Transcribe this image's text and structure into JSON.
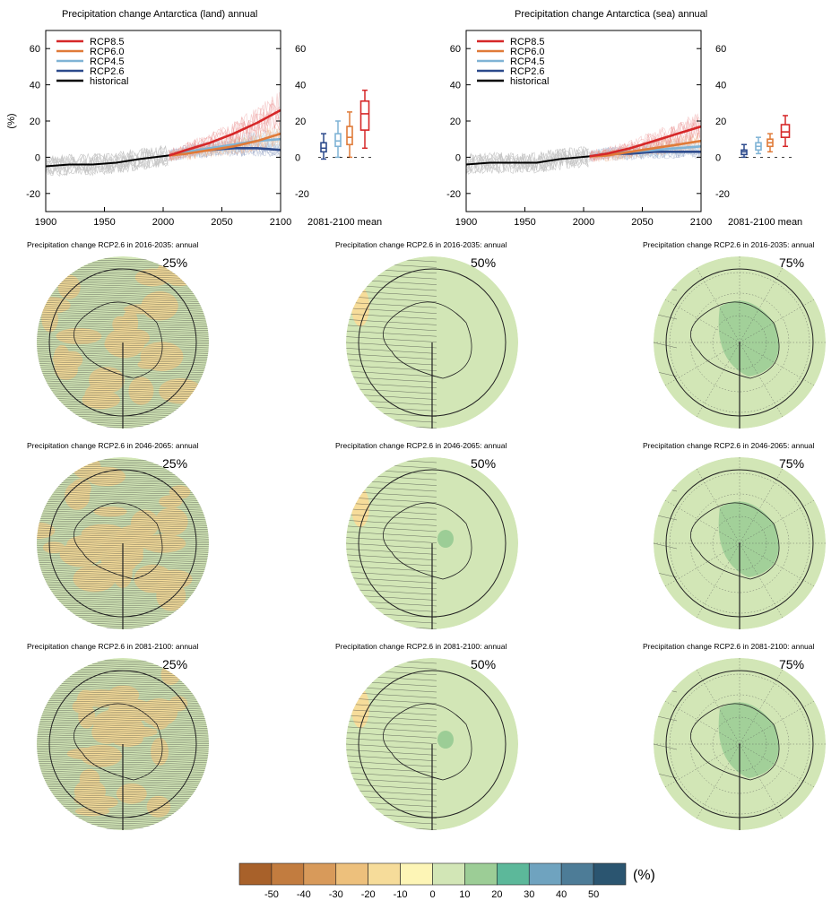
{
  "colors": {
    "rcp85": "#d62728",
    "rcp60": "#e07b39",
    "rcp45": "#7fb3d5",
    "rcp26": "#2c4a8c",
    "historical": "#000000",
    "model_spread": "#9a9a9a",
    "map_base": "#d2e6b6",
    "hatching": "#3a3a3a"
  },
  "chart_data": [
    {
      "type": "line",
      "title": "Precipitation change Antarctica (land) annual",
      "ylabel": "(%)",
      "xlim": [
        1900,
        2100
      ],
      "ylim": [
        -30,
        70
      ],
      "xticks": [
        1900,
        1950,
        2000,
        2050,
        2100
      ],
      "yticks": [
        -20,
        0,
        20,
        40,
        60
      ],
      "grid": false,
      "legend": [
        "RCP8.5",
        "RCP6.0",
        "RCP4.5",
        "RCP2.6",
        "historical"
      ],
      "legend_position": "top-left",
      "series": [
        {
          "name": "historical",
          "x": [
            1900,
            1920,
            1940,
            1960,
            1980,
            2005
          ],
          "y": [
            -5,
            -4,
            -4,
            -3,
            -1,
            1
          ]
        },
        {
          "name": "RCP2.6",
          "x": [
            2005,
            2020,
            2040,
            2060,
            2080,
            2100
          ],
          "y": [
            1,
            3,
            4,
            5,
            5,
            4
          ]
        },
        {
          "name": "RCP4.5",
          "x": [
            2005,
            2020,
            2040,
            2060,
            2080,
            2100
          ],
          "y": [
            1,
            3,
            5,
            7,
            9,
            10
          ]
        },
        {
          "name": "RCP6.0",
          "x": [
            2005,
            2020,
            2040,
            2060,
            2080,
            2100
          ],
          "y": [
            1,
            2,
            4,
            6,
            9,
            13
          ]
        },
        {
          "name": "RCP8.5",
          "x": [
            2005,
            2020,
            2040,
            2060,
            2080,
            2100
          ],
          "y": [
            1,
            4,
            8,
            13,
            19,
            26
          ]
        }
      ],
      "mean_2081_2100": {
        "label": "2081-2100 mean",
        "boxes": [
          {
            "scenario": "RCP2.6",
            "min": -1,
            "q1": 3,
            "median": 5,
            "q3": 8,
            "max": 13
          },
          {
            "scenario": "RCP4.5",
            "min": 0,
            "q1": 6,
            "median": 9,
            "q3": 13,
            "max": 20
          },
          {
            "scenario": "RCP6.0",
            "min": 0,
            "q1": 7,
            "median": 11,
            "q3": 17,
            "max": 25
          },
          {
            "scenario": "RCP8.5",
            "min": 5,
            "q1": 15,
            "median": 24,
            "q3": 31,
            "max": 37
          }
        ]
      }
    },
    {
      "type": "line",
      "title": "Precipitation change Antarctica (sea) annual",
      "ylabel": "",
      "xlim": [
        1900,
        2100
      ],
      "ylim": [
        -30,
        70
      ],
      "xticks": [
        1900,
        1950,
        2000,
        2050,
        2100
      ],
      "yticks": [
        -20,
        0,
        20,
        40,
        60
      ],
      "grid": false,
      "legend": [
        "RCP8.5",
        "RCP6.0",
        "RCP4.5",
        "RCP2.6",
        "historical"
      ],
      "legend_position": "top-left",
      "series": [
        {
          "name": "historical",
          "x": [
            1900,
            1920,
            1940,
            1960,
            1980,
            2005
          ],
          "y": [
            -4,
            -3,
            -3,
            -3,
            -1,
            0.5
          ]
        },
        {
          "name": "RCP2.6",
          "x": [
            2005,
            2020,
            2040,
            2060,
            2080,
            2100
          ],
          "y": [
            0.5,
            2,
            2,
            3,
            3,
            3
          ]
        },
        {
          "name": "RCP4.5",
          "x": [
            2005,
            2020,
            2040,
            2060,
            2080,
            2100
          ],
          "y": [
            0.5,
            2,
            3,
            4,
            5,
            6
          ]
        },
        {
          "name": "RCP6.0",
          "x": [
            2005,
            2020,
            2040,
            2060,
            2080,
            2100
          ],
          "y": [
            0.5,
            1,
            3,
            5,
            7,
            9
          ]
        },
        {
          "name": "RCP8.5",
          "x": [
            2005,
            2020,
            2040,
            2060,
            2080,
            2100
          ],
          "y": [
            0.5,
            2,
            5,
            9,
            13,
            17
          ]
        }
      ],
      "mean_2081_2100": {
        "label": "2081-2100 mean",
        "boxes": [
          {
            "scenario": "RCP2.6",
            "min": 0,
            "q1": 1.5,
            "median": 3,
            "q3": 4,
            "max": 7
          },
          {
            "scenario": "RCP4.5",
            "min": 2,
            "q1": 4,
            "median": 6,
            "q3": 8,
            "max": 11
          },
          {
            "scenario": "RCP6.0",
            "min": 3,
            "q1": 6,
            "median": 8,
            "q3": 10,
            "max": 13
          },
          {
            "scenario": "RCP8.5",
            "min": 6,
            "q1": 11,
            "median": 14,
            "q3": 18,
            "max": 23
          }
        ]
      }
    },
    {
      "type": "heatmap",
      "description_rows": "Precipitation change RCP2.6 maps",
      "rows": [
        {
          "title": "Precipitation change RCP2.6 in 2016-2035: annual"
        },
        {
          "title": "Precipitation change RCP2.6 in 2046-2065: annual"
        },
        {
          "title": "Precipitation change RCP2.6 in 2081-2100: annual"
        }
      ],
      "columns": [
        "25%",
        "50%",
        "75%"
      ],
      "colorbar": {
        "ticks": [
          "-50",
          "-40",
          "-30",
          "-20",
          "-10",
          "0",
          "10",
          "20",
          "30",
          "40",
          "50"
        ],
        "unit": "(%)",
        "colors": [
          "#a8612a",
          "#c27c3f",
          "#d89a5a",
          "#edc07c",
          "#f6dc9a",
          "#fdf5b6",
          "#d2e6b6",
          "#9ccd96",
          "#5cb89a",
          "#6fa3bf",
          "#4d7c97",
          "#2b5570"
        ]
      }
    }
  ]
}
